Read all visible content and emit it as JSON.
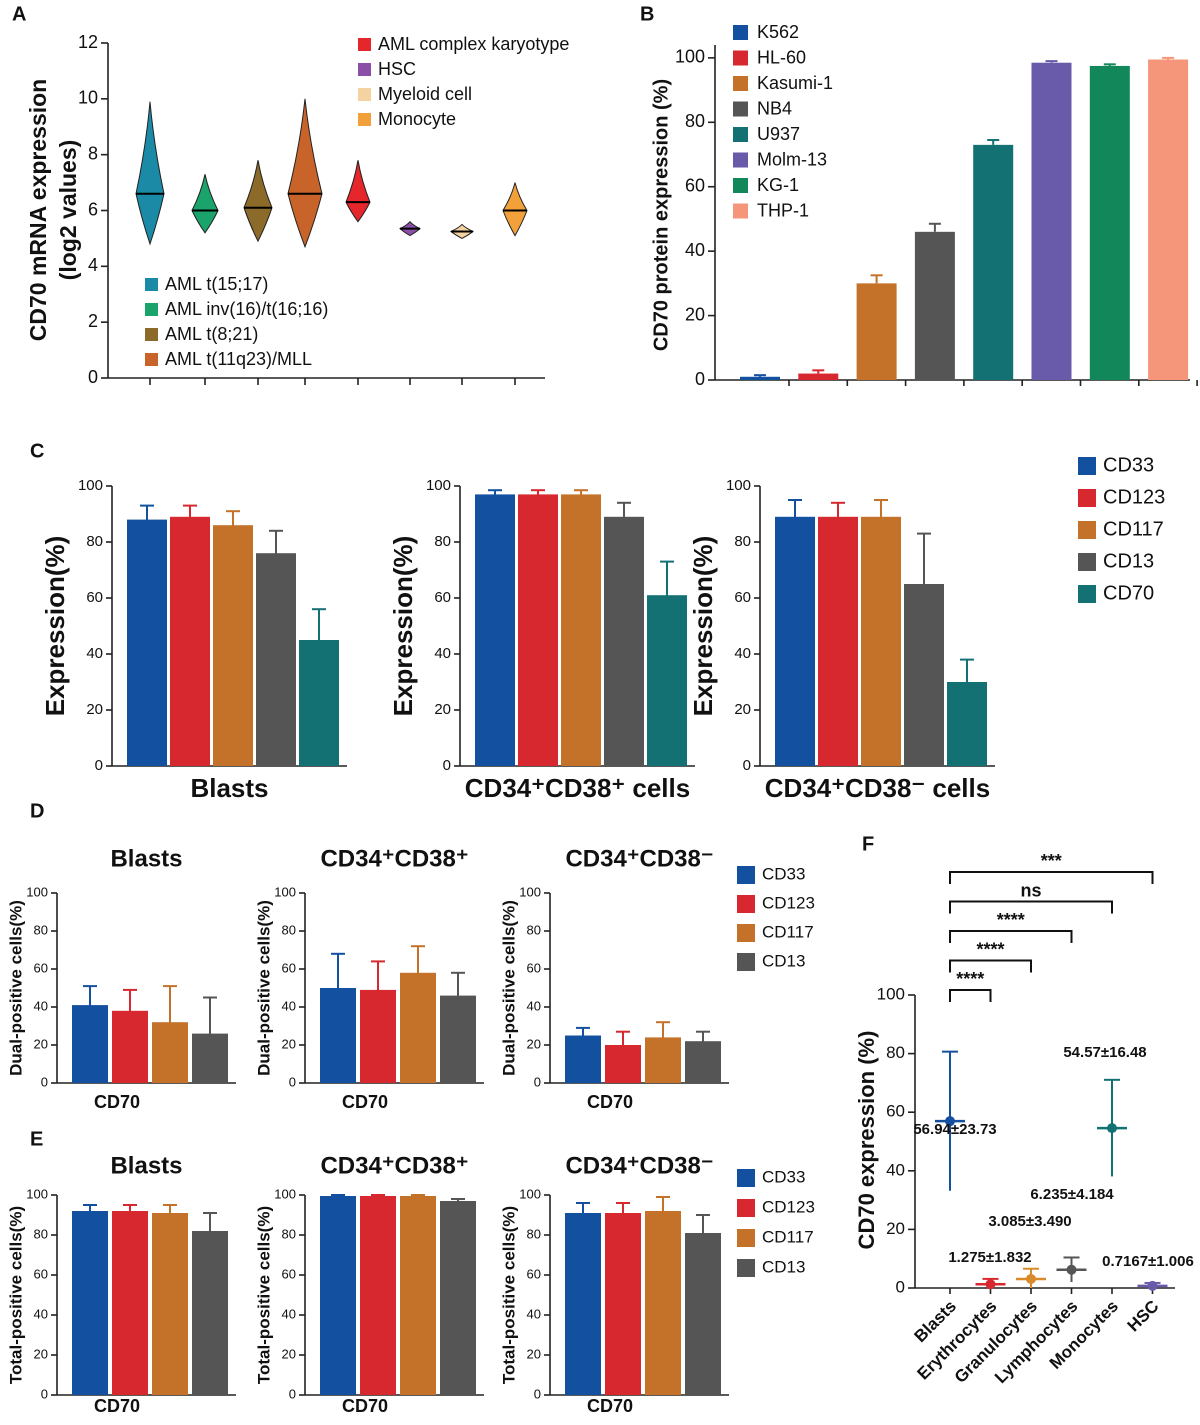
{
  "chart_data": [
    {
      "type": "violin",
      "panel": "A",
      "ylabel": [
        "CD70 mRNA expression",
        "(log2 values)"
      ],
      "ylim": [
        0,
        12
      ],
      "yticks": [
        0,
        2,
        4,
        6,
        8,
        10,
        12
      ],
      "series": [
        {
          "name": "AML t(15;17)",
          "color": "#1a8aa6",
          "min": 4.8,
          "median": 6.6,
          "max": 9.9
        },
        {
          "name": "AML inv(16)/t(16;16)",
          "color": "#1aa36a",
          "min": 5.2,
          "median": 6.0,
          "max": 7.3
        },
        {
          "name": "AML t(8;21)",
          "color": "#8c6a2a",
          "min": 4.9,
          "median": 6.1,
          "max": 7.8
        },
        {
          "name": "AML t(11q23)/MLL",
          "color": "#c8642a",
          "min": 4.7,
          "median": 6.6,
          "max": 10.0
        },
        {
          "name": "AML complex karyotype",
          "color": "#e5262a",
          "min": 5.6,
          "median": 6.3,
          "max": 7.8
        },
        {
          "name": "HSC",
          "color": "#8b4fa8",
          "min": 5.1,
          "median": 5.35,
          "max": 5.6
        },
        {
          "name": "Myeloid cell",
          "color": "#f5d3a0",
          "min": 5.0,
          "median": 5.25,
          "max": 5.5
        },
        {
          "name": "Monocyte",
          "color": "#f2a03a",
          "min": 5.1,
          "median": 6.0,
          "max": 7.0
        }
      ]
    },
    {
      "type": "bar",
      "panel": "B",
      "ylabel": "CD70 protein expression (%)",
      "ylim": [
        0,
        104
      ],
      "yticks": [
        0,
        20,
        40,
        60,
        80,
        100
      ],
      "categories": [
        "K562",
        "HL-60",
        "Kasumi-1",
        "NB4",
        "U937",
        "Molm-13",
        "KG-1",
        "THP-1"
      ],
      "colors": [
        "#1450a0",
        "#d7282f",
        "#c4722a",
        "#555555",
        "#137173",
        "#6a5aaa",
        "#12875a",
        "#f5967a"
      ],
      "values": [
        1,
        2,
        30,
        46,
        73,
        98.5,
        97.5,
        99.5
      ],
      "errors": [
        0.5,
        1,
        2.5,
        2.5,
        1.5,
        0.5,
        0.5,
        0.5
      ]
    },
    {
      "type": "bar",
      "panel": "C",
      "ylabel": "Expression(%)",
      "ylim": [
        0,
        100
      ],
      "yticks": [
        0,
        20,
        40,
        60,
        80,
        100
      ],
      "categories": [
        "Blasts",
        "CD34⁺CD38⁺ cells",
        "CD34⁺CD38⁻ cells"
      ],
      "series": [
        {
          "name": "CD33",
          "color": "#1450a0",
          "values": [
            88,
            97,
            89
          ],
          "errors": [
            5,
            1.5,
            6
          ]
        },
        {
          "name": "CD123",
          "color": "#d7282f",
          "values": [
            89,
            97,
            89
          ],
          "errors": [
            4,
            1.5,
            5
          ]
        },
        {
          "name": "CD117",
          "color": "#c4722a",
          "values": [
            86,
            97,
            89
          ],
          "errors": [
            5,
            1.5,
            6
          ]
        },
        {
          "name": "CD13",
          "color": "#555555",
          "values": [
            76,
            89,
            65
          ],
          "errors": [
            8,
            5,
            18
          ]
        },
        {
          "name": "CD70",
          "color": "#137173",
          "values": [
            45,
            61,
            30
          ],
          "errors": [
            11,
            12,
            8
          ]
        }
      ]
    },
    {
      "type": "bar",
      "panel": "D",
      "ylabel": "Dual-positive cells(%)",
      "xlabel": "CD70",
      "ylim": [
        0,
        100
      ],
      "yticks": [
        0,
        20,
        40,
        60,
        80,
        100
      ],
      "categories": [
        "Blasts",
        "CD34⁺CD38⁺",
        "CD34⁺CD38⁻"
      ],
      "series": [
        {
          "name": "CD33",
          "color": "#1450a0",
          "values": [
            41,
            50,
            25
          ],
          "errors": [
            10,
            18,
            4
          ]
        },
        {
          "name": "CD123",
          "color": "#d7282f",
          "values": [
            38,
            49,
            20
          ],
          "errors": [
            11,
            15,
            7
          ]
        },
        {
          "name": "CD117",
          "color": "#c4722a",
          "values": [
            32,
            58,
            24
          ],
          "errors": [
            19,
            14,
            8
          ]
        },
        {
          "name": "CD13",
          "color": "#555555",
          "values": [
            26,
            46,
            22
          ],
          "errors": [
            19,
            12,
            5
          ]
        }
      ]
    },
    {
      "type": "bar",
      "panel": "E",
      "ylabel": "Total-positive cells(%)",
      "xlabel": "CD70",
      "ylim": [
        0,
        100
      ],
      "yticks": [
        0,
        20,
        40,
        60,
        80,
        100
      ],
      "categories": [
        "Blasts",
        "CD34⁺CD38⁺",
        "CD34⁺CD38⁻"
      ],
      "series": [
        {
          "name": "CD33",
          "color": "#1450a0",
          "values": [
            92,
            99.5,
            91
          ],
          "errors": [
            3,
            0.5,
            5
          ]
        },
        {
          "name": "CD123",
          "color": "#d7282f",
          "values": [
            92,
            99.5,
            91
          ],
          "errors": [
            3,
            0.5,
            5
          ]
        },
        {
          "name": "CD117",
          "color": "#c4722a",
          "values": [
            91,
            99.5,
            92
          ],
          "errors": [
            4,
            0.5,
            7
          ]
        },
        {
          "name": "CD13",
          "color": "#555555",
          "values": [
            82,
            97,
            81
          ],
          "errors": [
            9,
            1,
            9
          ]
        }
      ]
    },
    {
      "type": "dotplot",
      "panel": "F",
      "ylabel": "CD70 expression (%)",
      "ylim": [
        0,
        100
      ],
      "yticks": [
        0,
        20,
        40,
        60,
        80,
        100
      ],
      "categories": [
        "Blasts",
        "Erythrocytes",
        "Granulocytes",
        "Lymphocytes",
        "Monocytes",
        "HSC"
      ],
      "colors": [
        "#1450a0",
        "#d7282f",
        "#d98a2a",
        "#555555",
        "#137173",
        "#6a5aaa"
      ],
      "values": [
        56.94,
        1.275,
        3.085,
        6.235,
        54.57,
        0.7167
      ],
      "errors": [
        23.73,
        1.832,
        3.49,
        4.184,
        16.48,
        1.006
      ],
      "value_labels": [
        "56.94±23.73",
        "1.275±1.832",
        "3.085±3.490",
        "6.235±4.184",
        "54.57±16.48",
        "0.7167±1.006"
      ],
      "annotations": [
        {
          "text": "****",
          "between": [
            "Blasts",
            "Erythrocytes"
          ]
        },
        {
          "text": "****",
          "between": [
            "Blasts",
            "Granulocytes"
          ]
        },
        {
          "text": "****",
          "between": [
            "Blasts",
            "Lymphocytes"
          ]
        },
        {
          "text": "ns",
          "between": [
            "Blasts",
            "Monocytes"
          ]
        },
        {
          "text": "***",
          "between": [
            "Blasts",
            "HSC"
          ]
        }
      ]
    }
  ]
}
